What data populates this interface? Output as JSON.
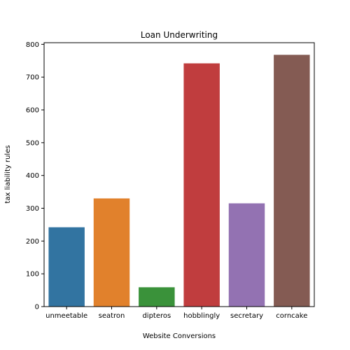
{
  "chart_data": {
    "type": "bar",
    "title": "Loan Underwriting",
    "xlabel": "Website Conversions",
    "ylabel": "tax liability rules",
    "categories": [
      "unmeetable",
      "seatron",
      "dipteros",
      "hobblingly",
      "secretary",
      "corncake"
    ],
    "values": [
      242,
      330,
      59,
      742,
      315,
      768
    ],
    "colors": [
      "#3274a1",
      "#e1812c",
      "#3a923a",
      "#c03d3e",
      "#9372b2",
      "#845b53"
    ],
    "ylim": [
      0,
      805
    ],
    "yticks": [
      0,
      100,
      200,
      300,
      400,
      500,
      600,
      700,
      800
    ],
    "grid": false,
    "legend": "none"
  }
}
